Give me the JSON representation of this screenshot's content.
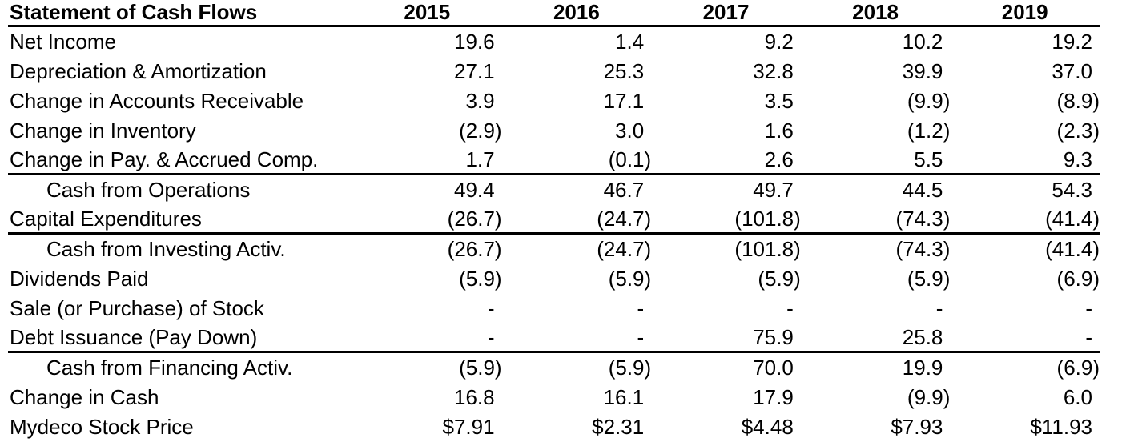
{
  "table": {
    "title": "Statement of Cash Flows",
    "columns": [
      "2015",
      "2016",
      "2017",
      "2018",
      "2019"
    ],
    "rows": [
      {
        "label": "Net Income",
        "indent": false,
        "rule_below": false,
        "values": [
          "19.6",
          "1.4",
          "9.2",
          "10.2",
          "19.2"
        ]
      },
      {
        "label": "Depreciation & Amortization",
        "indent": false,
        "rule_below": false,
        "values": [
          "27.1",
          "25.3",
          "32.8",
          "39.9",
          "37.0"
        ]
      },
      {
        "label": "Change in Accounts Receivable",
        "indent": false,
        "rule_below": false,
        "values": [
          "3.9",
          "17.1",
          "3.5",
          "(9.9)",
          "(8.9)"
        ]
      },
      {
        "label": "Change in Inventory",
        "indent": false,
        "rule_below": false,
        "values": [
          "(2.9)",
          "3.0",
          "1.6",
          "(1.2)",
          "(2.3)"
        ]
      },
      {
        "label": "Change in Pay. & Accrued Comp.",
        "indent": false,
        "rule_below": true,
        "values": [
          "1.7",
          "(0.1)",
          "2.6",
          "5.5",
          "9.3"
        ]
      },
      {
        "label": "Cash from Operations",
        "indent": true,
        "rule_below": false,
        "values": [
          "49.4",
          "46.7",
          "49.7",
          "44.5",
          "54.3"
        ]
      },
      {
        "label": "Capital Expenditures",
        "indent": false,
        "rule_below": true,
        "values": [
          "(26.7)",
          "(24.7)",
          "(101.8)",
          "(74.3)",
          "(41.4)"
        ]
      },
      {
        "label": "Cash from Investing Activ.",
        "indent": true,
        "rule_below": false,
        "values": [
          "(26.7)",
          "(24.7)",
          "(101.8)",
          "(74.3)",
          "(41.4)"
        ]
      },
      {
        "label": "Dividends Paid",
        "indent": false,
        "rule_below": false,
        "values": [
          "(5.9)",
          "(5.9)",
          "(5.9)",
          "(5.9)",
          "(6.9)"
        ]
      },
      {
        "label": "Sale (or Purchase) of Stock",
        "indent": false,
        "rule_below": false,
        "values": [
          "-",
          "-",
          "-",
          "-",
          "-"
        ]
      },
      {
        "label": "Debt Issuance (Pay Down)",
        "indent": false,
        "rule_below": true,
        "values": [
          "-",
          "-",
          "75.9",
          "25.8",
          "-"
        ]
      },
      {
        "label": "Cash from Financing Activ.",
        "indent": true,
        "rule_below": false,
        "values": [
          "(5.9)",
          "(5.9)",
          "70.0",
          "19.9",
          "(6.9)"
        ]
      },
      {
        "label": "Change in Cash",
        "indent": false,
        "rule_below": false,
        "values": [
          "16.8",
          "16.1",
          "17.9",
          "(9.9)",
          "6.0"
        ]
      },
      {
        "label": "Mydeco Stock Price",
        "indent": false,
        "rule_below": false,
        "values": [
          "$7.91",
          "$2.31",
          "$4.48",
          "$7.93",
          "$11.93"
        ]
      }
    ]
  }
}
